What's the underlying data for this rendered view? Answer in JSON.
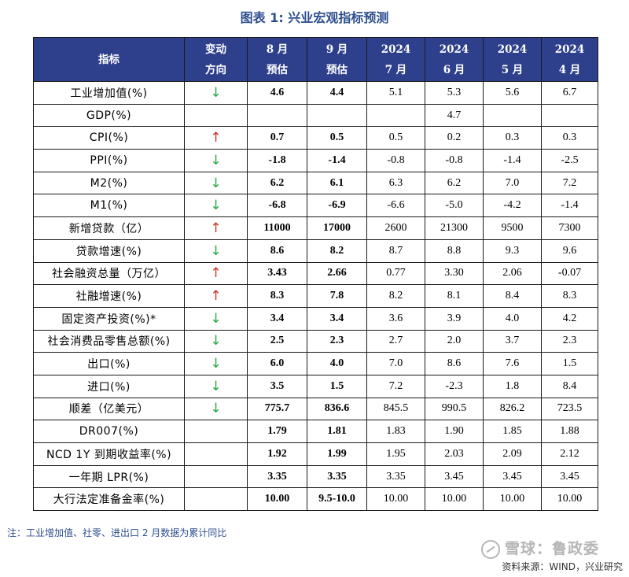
{
  "title": "图表 1:  兴业宏观指标预测",
  "header": {
    "indicator": "指标",
    "direction": [
      "变动",
      "方向"
    ],
    "aug": [
      "8 月",
      "预估"
    ],
    "sep": [
      "9 月",
      "预估"
    ],
    "jul": [
      "2024",
      "7 月"
    ],
    "jun": [
      "2024",
      "6 月"
    ],
    "may": [
      "2024",
      "5 月"
    ],
    "apr": [
      "2024",
      "4 月"
    ]
  },
  "rows": [
    {
      "name": "工业增加值(%)",
      "dir": "↓",
      "aug": "4.6",
      "sep": "4.4",
      "jul": "5.1",
      "jun": "5.3",
      "may": "5.6",
      "apr": "6.7"
    },
    {
      "name": "GDP(%)",
      "dir": "",
      "aug": "",
      "sep": "",
      "jul": "",
      "jun": "4.7",
      "may": "",
      "apr": ""
    },
    {
      "name": "CPI(%)",
      "dir": "↑",
      "aug": "0.7",
      "sep": "0.5",
      "jul": "0.5",
      "jun": "0.2",
      "may": "0.3",
      "apr": "0.3"
    },
    {
      "name": "PPI(%)",
      "dir": "↓",
      "aug": "-1.8",
      "sep": "-1.4",
      "jul": "-0.8",
      "jun": "-0.8",
      "may": "-1.4",
      "apr": "-2.5"
    },
    {
      "name": "M2(%)",
      "dir": "↓",
      "aug": "6.2",
      "sep": "6.1",
      "jul": "6.3",
      "jun": "6.2",
      "may": "7.0",
      "apr": "7.2"
    },
    {
      "name": "M1(%)",
      "dir": "↓",
      "aug": "-6.8",
      "sep": "-6.9",
      "jul": "-6.6",
      "jun": "-5.0",
      "may": "-4.2",
      "apr": "-1.4"
    },
    {
      "name": "新增贷款（亿）",
      "dir": "↑",
      "aug": "11000",
      "sep": "17000",
      "jul": "2600",
      "jun": "21300",
      "may": "9500",
      "apr": "7300"
    },
    {
      "name": "贷款增速(%)",
      "dir": "↓",
      "aug": "8.6",
      "sep": "8.2",
      "jul": "8.7",
      "jun": "8.8",
      "may": "9.3",
      "apr": "9.6"
    },
    {
      "name": "社会融资总量（万亿）",
      "dir": "↑",
      "aug": "3.43",
      "sep": "2.66",
      "jul": "0.77",
      "jun": "3.30",
      "may": "2.06",
      "apr": "-0.07"
    },
    {
      "name": "社融增速(%)",
      "dir": "↑",
      "aug": "8.3",
      "sep": "7.8",
      "jul": "8.2",
      "jun": "8.1",
      "may": "8.4",
      "apr": "8.3"
    },
    {
      "name": "固定资产投资(%)*",
      "dir": "↓",
      "aug": "3.4",
      "sep": "3.4",
      "jul": "3.6",
      "jun": "3.9",
      "may": "4.0",
      "apr": "4.2"
    },
    {
      "name": "社会消费品零售总额(%)",
      "dir": "↓",
      "aug": "2.5",
      "sep": "2.3",
      "jul": "2.7",
      "jun": "2.0",
      "may": "3.7",
      "apr": "2.3"
    },
    {
      "name": "出口(%)",
      "dir": "↓",
      "aug": "6.0",
      "sep": "4.0",
      "jul": "7.0",
      "jun": "8.6",
      "may": "7.6",
      "apr": "1.5"
    },
    {
      "name": "进口(%)",
      "dir": "↓",
      "aug": "3.5",
      "sep": "1.5",
      "jul": "7.2",
      "jun": "-2.3",
      "may": "1.8",
      "apr": "8.4"
    },
    {
      "name": "顺差（亿美元）",
      "dir": "↓",
      "aug": "775.7",
      "sep": "836.6",
      "jul": "845.5",
      "jun": "990.5",
      "may": "826.2",
      "apr": "723.5"
    },
    {
      "name": "DR007(%)",
      "dir": "",
      "aug": "1.79",
      "sep": "1.81",
      "jul": "1.83",
      "jun": "1.90",
      "may": "1.85",
      "apr": "1.88"
    },
    {
      "name": "NCD 1Y 到期收益率(%)",
      "dir": "",
      "aug": "1.92",
      "sep": "1.99",
      "jul": "1.95",
      "jun": "2.03",
      "may": "2.09",
      "apr": "2.12"
    },
    {
      "name": "一年期 LPR(%)",
      "dir": "",
      "aug": "3.35",
      "sep": "3.35",
      "jul": "3.35",
      "jun": "3.45",
      "may": "3.45",
      "apr": "3.45"
    },
    {
      "name": "大行法定准备金率(%)",
      "dir": "",
      "aug": "10.00",
      "sep": "9.5-10.0",
      "jul": "10.00",
      "jun": "10.00",
      "may": "10.00",
      "apr": "10.00"
    }
  ],
  "colors": {
    "header_bg": "#2e3f8c",
    "up": "#c0392b",
    "down": "#27a844",
    "title": "#2e4f8f"
  },
  "note": "注：工业增加值、社零、进出口 2 月数据为累计同比",
  "source": "资料来源：WIND，兴业研究",
  "watermark": "雪球：鲁政委"
}
